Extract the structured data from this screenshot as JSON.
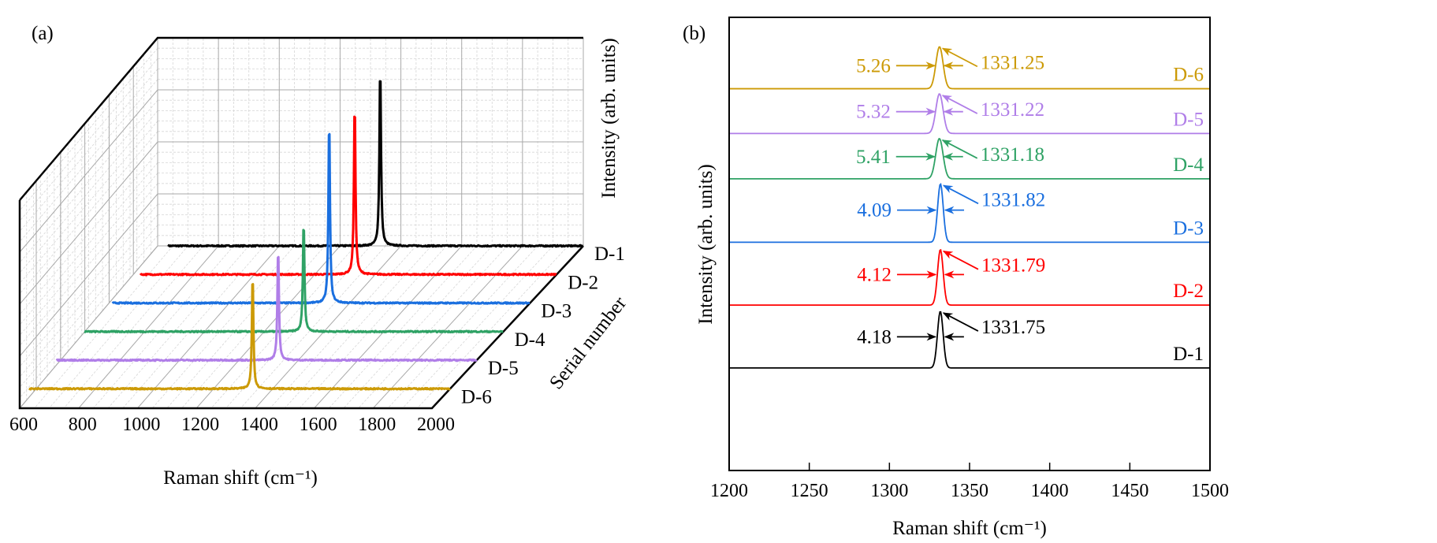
{
  "chart_data": [
    {
      "panel_label": "(a)",
      "type": "line",
      "style": "3d-waterfall",
      "xlabel": "Raman shift (cm⁻¹)",
      "ylabel": "Serial number",
      "zlabel": "Intensity (arb. units)",
      "xlim": [
        600,
        2000
      ],
      "xticks": [
        600,
        800,
        1000,
        1200,
        1400,
        1600,
        1800,
        2000
      ],
      "zlim": [
        0,
        1
      ],
      "grid": true,
      "series": [
        {
          "name": "D-1",
          "color": "#000000",
          "peak_position": 1332,
          "peak_intensity": 0.88
        },
        {
          "name": "D-2",
          "color": "#ff0000",
          "peak_position": 1332,
          "peak_intensity": 0.84
        },
        {
          "name": "D-3",
          "color": "#1a6fdf",
          "peak_position": 1332,
          "peak_intensity": 0.9
        },
        {
          "name": "D-4",
          "color": "#2fa265",
          "peak_position": 1332,
          "peak_intensity": 0.54
        },
        {
          "name": "D-5",
          "color": "#b07ee8",
          "peak_position": 1332,
          "peak_intensity": 0.55
        },
        {
          "name": "D-6",
          "color": "#cc9a06",
          "peak_position": 1332,
          "peak_intensity": 0.56
        }
      ]
    },
    {
      "panel_label": "(b)",
      "type": "line",
      "style": "stacked-offset",
      "xlabel": "Raman shift (cm⁻¹)",
      "ylabel": "Intensity (arb. units)",
      "xlim": [
        1200,
        1500
      ],
      "xticks": [
        1200,
        1250,
        1300,
        1350,
        1400,
        1450,
        1500
      ],
      "ylim": [
        0,
        8
      ],
      "grid": false,
      "series": [
        {
          "name": "D-1",
          "color": "#000000",
          "offset": 1.81,
          "height": 1.0,
          "peak_position": "1331.75",
          "fwhm": "4.18"
        },
        {
          "name": "D-2",
          "color": "#ff0000",
          "offset": 2.92,
          "height": 0.98,
          "peak_position": "1331.79",
          "fwhm": "4.12"
        },
        {
          "name": "D-3",
          "color": "#1a6fdf",
          "offset": 4.03,
          "height": 1.03,
          "peak_position": "1331.82",
          "fwhm": "4.09"
        },
        {
          "name": "D-4",
          "color": "#2fa265",
          "offset": 5.15,
          "height": 0.71,
          "peak_position": "1331.18",
          "fwhm": "5.41"
        },
        {
          "name": "D-5",
          "color": "#b07ee8",
          "offset": 5.95,
          "height": 0.7,
          "peak_position": "1331.22",
          "fwhm": "5.32"
        },
        {
          "name": "D-6",
          "color": "#cc9a06",
          "offset": 6.74,
          "height": 0.74,
          "peak_position": "1331.25",
          "fwhm": "5.26"
        }
      ]
    }
  ]
}
